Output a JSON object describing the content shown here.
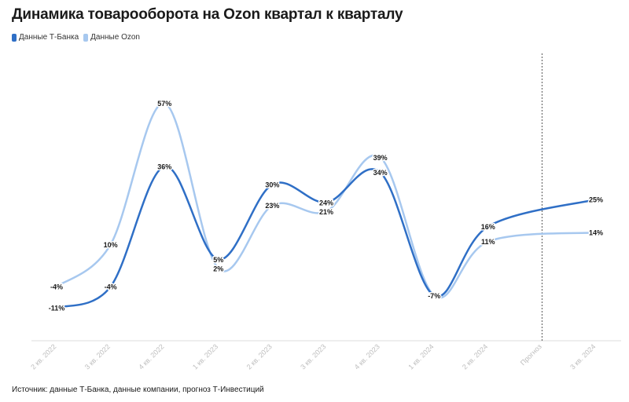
{
  "title": "Динамика товарооборота на Ozon квартал к кварталу",
  "source": "Источник: данные Т-Банка, данные компании, прогноз Т-Инвестиций",
  "colors": {
    "tbank": "#2f6fc6",
    "ozon": "#a7c8ef",
    "forecast_line": "#555555",
    "axis": "#dddddd"
  },
  "chart_data": {
    "type": "line",
    "categories": [
      "2 кв. 2022",
      "3 кв. 2022",
      "4 кв. 2022",
      "1 кв. 2023",
      "2 кв. 2023",
      "3 кв. 2023",
      "4 кв. 2023",
      "1 кв. 2024",
      "2 кв. 2024",
      "Прогноз",
      "3 кв. 2024"
    ],
    "series": [
      {
        "name": "Данные Т-Банка",
        "color": "#2f6fc6",
        "values": [
          -11,
          -4,
          36,
          5,
          30,
          24,
          34,
          -7,
          16,
          null,
          25
        ],
        "labels": [
          "-11%",
          "-4%",
          "36%",
          "5%",
          "30%",
          "24%",
          "34%",
          "-7%",
          "16%",
          "",
          "25%"
        ]
      },
      {
        "name": "Данные Ozon",
        "color": "#a7c8ef",
        "values": [
          -4,
          10,
          57,
          2,
          23,
          21,
          39,
          -7,
          11,
          null,
          14
        ],
        "labels": [
          "-4%",
          "10%",
          "57%",
          "2%",
          "23%",
          "21%",
          "39%",
          "-7%",
          "11%",
          "",
          "14%"
        ]
      }
    ],
    "forecast_marker_category": "Прогноз",
    "ylim": [
      -22,
      60
    ],
    "grid": false,
    "legend_position": "top-left"
  }
}
